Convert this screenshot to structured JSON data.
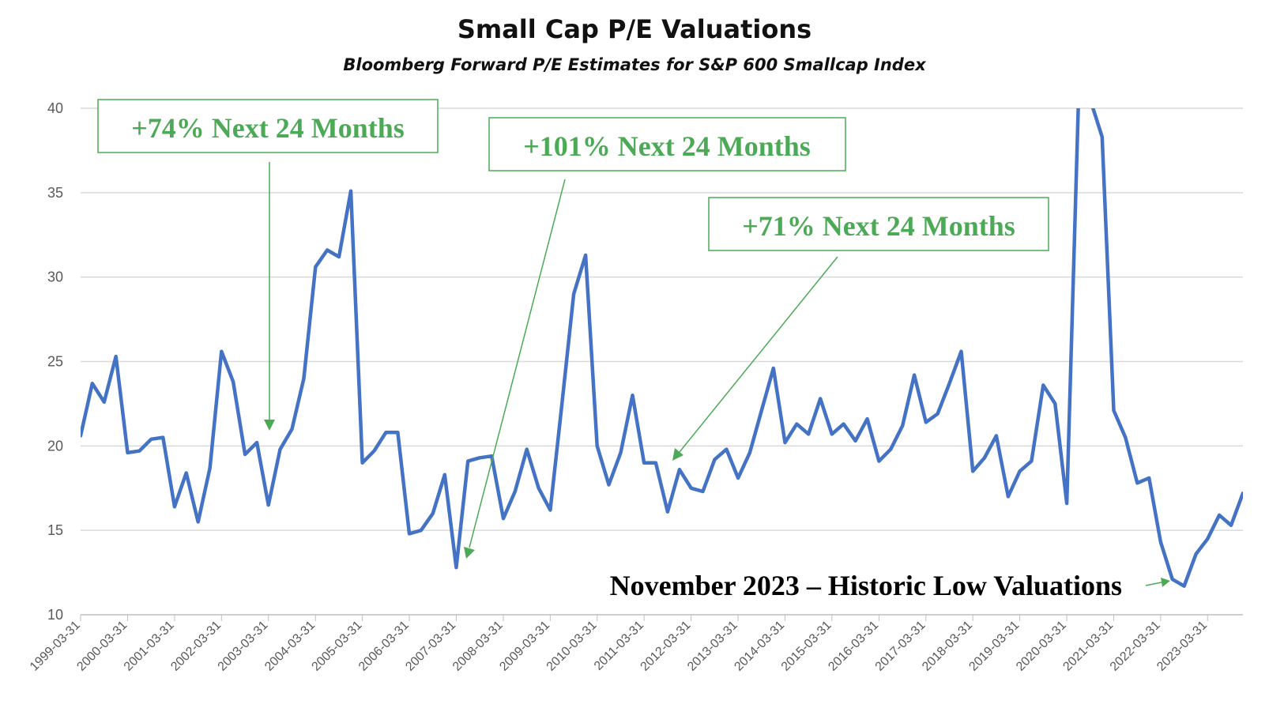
{
  "chart_data": {
    "type": "line",
    "title": "Small Cap P/E Valuations",
    "subtitle": "Bloomberg Forward P/E Estimates for S&P 600 Smallcap Index",
    "ylim": [
      10,
      40
    ],
    "yticks": [
      10,
      15,
      20,
      25,
      30,
      35,
      40
    ],
    "xlim": [
      "1999-03-31",
      "2023-12-31"
    ],
    "xticks": [
      "1999-03-31",
      "2000-03-31",
      "2001-03-31",
      "2002-03-31",
      "2003-03-31",
      "2004-03-31",
      "2005-03-31",
      "2006-03-31",
      "2007-03-31",
      "2008-03-31",
      "2009-03-31",
      "2010-03-31",
      "2011-03-31",
      "2012-03-31",
      "2013-03-31",
      "2014-03-31",
      "2015-03-31",
      "2016-03-31",
      "2017-03-31",
      "2018-03-31",
      "2019-03-31",
      "2020-03-31",
      "2021-03-31",
      "2022-03-31",
      "2023-03-31"
    ],
    "grid": true,
    "series": [
      {
        "color": "#4472c4",
        "x": [
          "1999-03-31",
          "1999-06-30",
          "1999-09-30",
          "1999-12-31",
          "2000-03-31",
          "2000-06-30",
          "2000-09-30",
          "2000-12-31",
          "2001-03-31",
          "2001-06-30",
          "2001-09-30",
          "2001-12-31",
          "2002-03-31",
          "2002-06-30",
          "2002-09-30",
          "2002-12-31",
          "2003-03-31",
          "2003-06-30",
          "2003-09-30",
          "2003-12-31",
          "2004-03-31",
          "2004-06-30",
          "2004-09-30",
          "2004-12-31",
          "2005-03-31",
          "2005-06-30",
          "2005-09-30",
          "2005-12-31",
          "2006-03-31",
          "2006-06-30",
          "2006-09-30",
          "2006-12-31",
          "2007-03-31",
          "2007-06-30",
          "2007-09-30",
          "2007-12-31",
          "2008-03-31",
          "2008-06-30",
          "2008-09-30",
          "2008-12-31",
          "2009-03-31",
          "2009-06-30",
          "2009-09-30",
          "2009-12-31",
          "2010-03-31",
          "2010-06-30",
          "2010-09-30",
          "2010-12-31",
          "2011-03-31",
          "2011-06-30",
          "2011-09-30",
          "2011-12-31",
          "2012-03-31",
          "2012-06-30",
          "2012-09-30",
          "2012-12-31",
          "2013-03-31",
          "2013-06-30",
          "2013-09-30",
          "2013-12-31",
          "2014-03-31",
          "2014-06-30",
          "2014-09-30",
          "2014-12-31",
          "2015-03-31",
          "2015-06-30",
          "2015-09-30",
          "2015-12-31",
          "2016-03-31",
          "2016-06-30",
          "2016-09-30",
          "2016-12-31",
          "2017-03-31",
          "2017-06-30",
          "2017-09-30",
          "2017-12-31",
          "2018-03-31",
          "2018-06-30",
          "2018-09-30",
          "2018-12-31",
          "2019-03-31",
          "2019-06-30",
          "2019-09-30",
          "2019-12-31",
          "2020-03-31",
          "2020-06-30",
          "2020-09-30",
          "2020-12-31",
          "2021-03-31",
          "2021-06-30",
          "2021-09-30",
          "2021-12-31",
          "2022-03-31",
          "2022-06-30",
          "2022-09-30",
          "2022-12-31",
          "2023-03-31",
          "2023-06-30",
          "2023-09-30",
          "2023-12-31"
        ],
        "values": [
          20.6,
          23.7,
          22.6,
          25.3,
          19.6,
          19.7,
          20.4,
          20.5,
          16.4,
          18.4,
          15.5,
          18.7,
          25.6,
          23.8,
          19.5,
          20.2,
          16.5,
          19.8,
          21.0,
          24.0,
          30.6,
          31.6,
          31.2,
          35.1,
          19.0,
          19.7,
          20.8,
          20.8,
          14.8,
          15.0,
          16.0,
          18.3,
          12.8,
          19.1,
          19.3,
          19.4,
          15.7,
          17.3,
          19.8,
          17.5,
          16.2,
          22.5,
          29.0,
          31.3,
          20.0,
          17.7,
          19.6,
          23.0,
          19.0,
          19.0,
          16.1,
          18.6,
          17.5,
          17.3,
          19.2,
          19.8,
          18.1,
          19.6,
          22.1,
          24.6,
          20.2,
          21.3,
          20.7,
          22.8,
          20.7,
          21.3,
          20.3,
          21.6,
          19.1,
          19.8,
          21.2,
          24.2,
          21.4,
          21.9,
          23.7,
          25.6,
          18.5,
          19.3,
          20.6,
          17.0,
          18.5,
          19.1,
          23.6,
          22.5,
          16.6,
          40.5,
          40.5,
          38.3,
          22.1,
          20.5,
          17.8,
          18.1,
          14.3,
          12.1,
          11.7,
          13.6,
          14.5,
          15.9,
          15.3,
          17.2
        ]
      }
    ],
    "annotations": [
      {
        "text": "+74% Next 24 Months"
      },
      {
        "text": "+101% Next 24 Months"
      },
      {
        "text": "+71% Next 24 Months"
      },
      {
        "text": "November 2023 – Historic Low Valuations"
      }
    ]
  }
}
